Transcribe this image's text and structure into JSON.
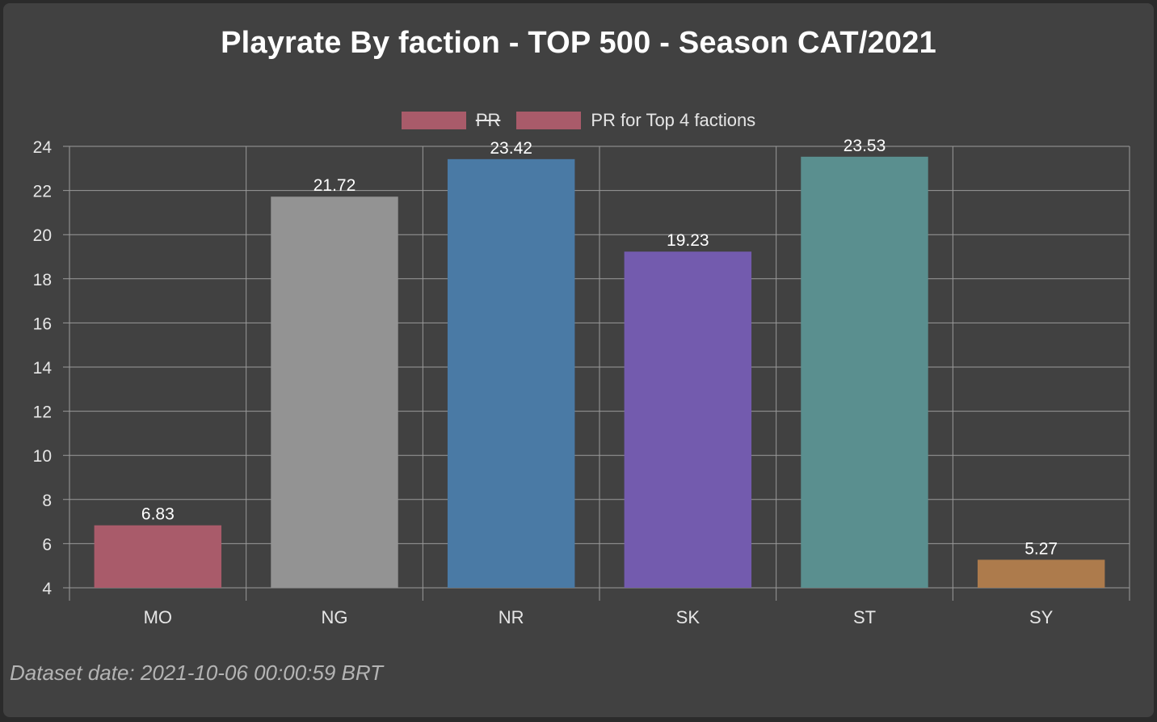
{
  "title": "Playrate By faction - TOP 500 - Season CAT/2021",
  "legend": [
    {
      "label": "PR",
      "color": "#a95b6a",
      "hidden": true
    },
    {
      "label": "PR for Top 4 factions",
      "color": "#a95b6a",
      "hidden": false
    }
  ],
  "footer": "Dataset date: 2021-10-06 00:00:59 BRT",
  "chart_data": {
    "type": "bar",
    "title": "Playrate By faction - TOP 500 - Season CAT/2021",
    "categories": [
      "MO",
      "NG",
      "NR",
      "SK",
      "ST",
      "SY"
    ],
    "series": [
      {
        "name": "PR for Top 4 factions",
        "values": [
          6.83,
          21.72,
          23.42,
          19.23,
          23.53,
          5.27
        ],
        "colors": [
          "#a95b6a",
          "#939393",
          "#4a7aa5",
          "#735bae",
          "#5a8f8f",
          "#ad7b4c"
        ]
      }
    ],
    "ylim": [
      4,
      24
    ],
    "yticks": [
      4,
      6,
      8,
      10,
      12,
      14,
      16,
      18,
      20,
      22,
      24
    ],
    "grid": true,
    "data_labels": true,
    "legend_position": "top-center",
    "xlabel": "",
    "ylabel": ""
  }
}
